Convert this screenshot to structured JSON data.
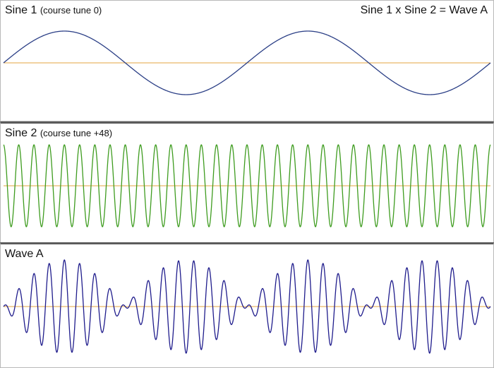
{
  "panels": [
    {
      "title": "Sine 1",
      "subtitle": "(course tune 0)",
      "right_label": "Sine 1 x Sine 2 = Wave A",
      "color": "#2b3f86"
    },
    {
      "title": "Sine 2",
      "subtitle": "(course tune +48)",
      "color": "#3e9c1f"
    },
    {
      "title": "Wave A",
      "subtitle": "",
      "color": "#1f1c8c"
    }
  ],
  "baseline_color": "#e3a640",
  "chart_data": [
    {
      "type": "line",
      "title": "Sine 1",
      "function": "sine",
      "cycles": 2,
      "amplitude": 1
    },
    {
      "type": "line",
      "title": "Sine 2",
      "function": "sine",
      "cycles": 32,
      "amplitude": 1
    },
    {
      "type": "line",
      "title": "Wave A",
      "function": "product of Sine 1 and Sine 2",
      "cycles": 32,
      "envelope_cycles": 2,
      "amplitude": 1
    }
  ]
}
